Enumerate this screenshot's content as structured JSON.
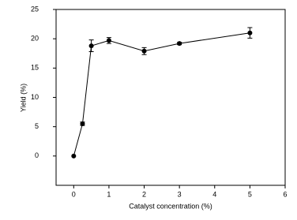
{
  "chart_data": {
    "type": "line",
    "xlabel": "Catalyst concentration (%)",
    "ylabel": "Yield (%)",
    "x": [
      0,
      0.25,
      0.5,
      1,
      2,
      3,
      5
    ],
    "series": [
      {
        "color": "#000000",
        "values": [
          0,
          5.5,
          18.8,
          19.7,
          17.9,
          19.2,
          21.0
        ],
        "errors": [
          0,
          0.3,
          1.0,
          0.5,
          0.6,
          0.2,
          0.9
        ]
      }
    ],
    "xlim": [
      -0.5,
      6
    ],
    "xticks": [
      0,
      1,
      2,
      3,
      4,
      5,
      6
    ],
    "ylim": [
      -5,
      25
    ],
    "yticks": [
      0,
      5,
      10,
      15,
      20,
      25
    ]
  }
}
